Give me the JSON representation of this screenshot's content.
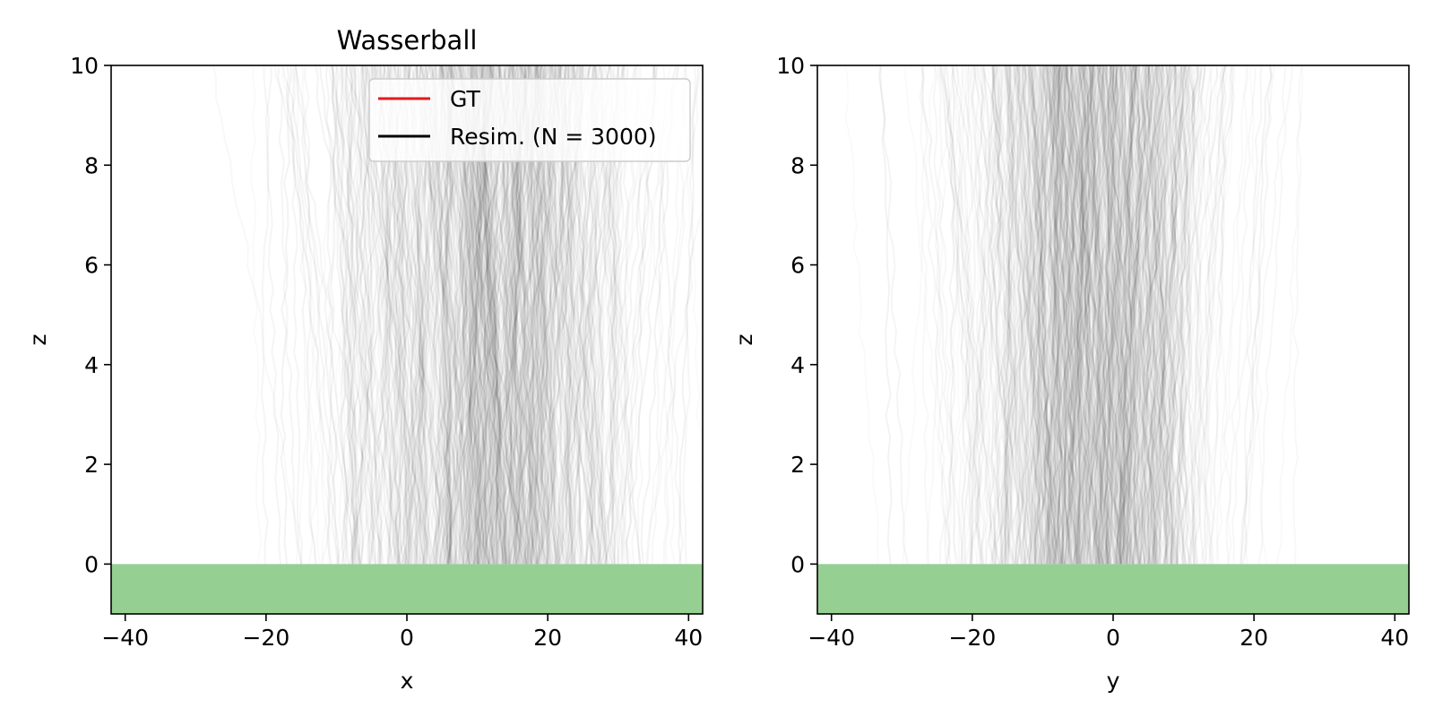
{
  "chart_data": [
    {
      "type": "line",
      "title": "Wasserball",
      "xlabel": "x",
      "ylabel": "z",
      "xlim": [
        -42,
        42
      ],
      "ylim": [
        -1,
        10
      ],
      "xticks": [
        -40,
        -20,
        0,
        20,
        40
      ],
      "xtick_labels": [
        "−40",
        "−20",
        "0",
        "20",
        "40"
      ],
      "yticks": [
        0,
        2,
        4,
        6,
        8,
        10
      ],
      "ytick_labels": [
        "0",
        "2",
        "4",
        "6",
        "8",
        "10"
      ],
      "ground": {
        "z_top": 0,
        "color": "#95cf92"
      },
      "legend": {
        "placement": "upper-right",
        "entries": [
          {
            "label": "GT",
            "color": "#e31a1c"
          },
          {
            "label": "Resim. (N = 3000)",
            "color": "#000000"
          }
        ]
      },
      "series": [
        {
          "name": "GT",
          "color": "#e31a1c",
          "x": [],
          "z": []
        },
        {
          "name": "Resim. (N = 3000)",
          "color": "#000000",
          "trajectory_count": 3000,
          "x_center_at_ground": 12,
          "x_spread": 11
        }
      ],
      "grid": false
    },
    {
      "type": "line",
      "title": "",
      "xlabel": "y",
      "ylabel": "z",
      "xlim": [
        -42,
        42
      ],
      "ylim": [
        -1,
        10
      ],
      "xticks": [
        -40,
        -20,
        0,
        20,
        40
      ],
      "xtick_labels": [
        "−40",
        "−20",
        "0",
        "20",
        "40"
      ],
      "yticks": [
        0,
        2,
        4,
        6,
        8,
        10
      ],
      "ytick_labels": [
        "0",
        "2",
        "4",
        "6",
        "8",
        "10"
      ],
      "ground": {
        "z_top": 0,
        "color": "#95cf92"
      },
      "series": [
        {
          "name": "Resim. (N = 3000)",
          "color": "#000000",
          "trajectory_count": 3000,
          "x_center_at_ground": -3,
          "x_spread": 9
        }
      ],
      "grid": false
    }
  ]
}
